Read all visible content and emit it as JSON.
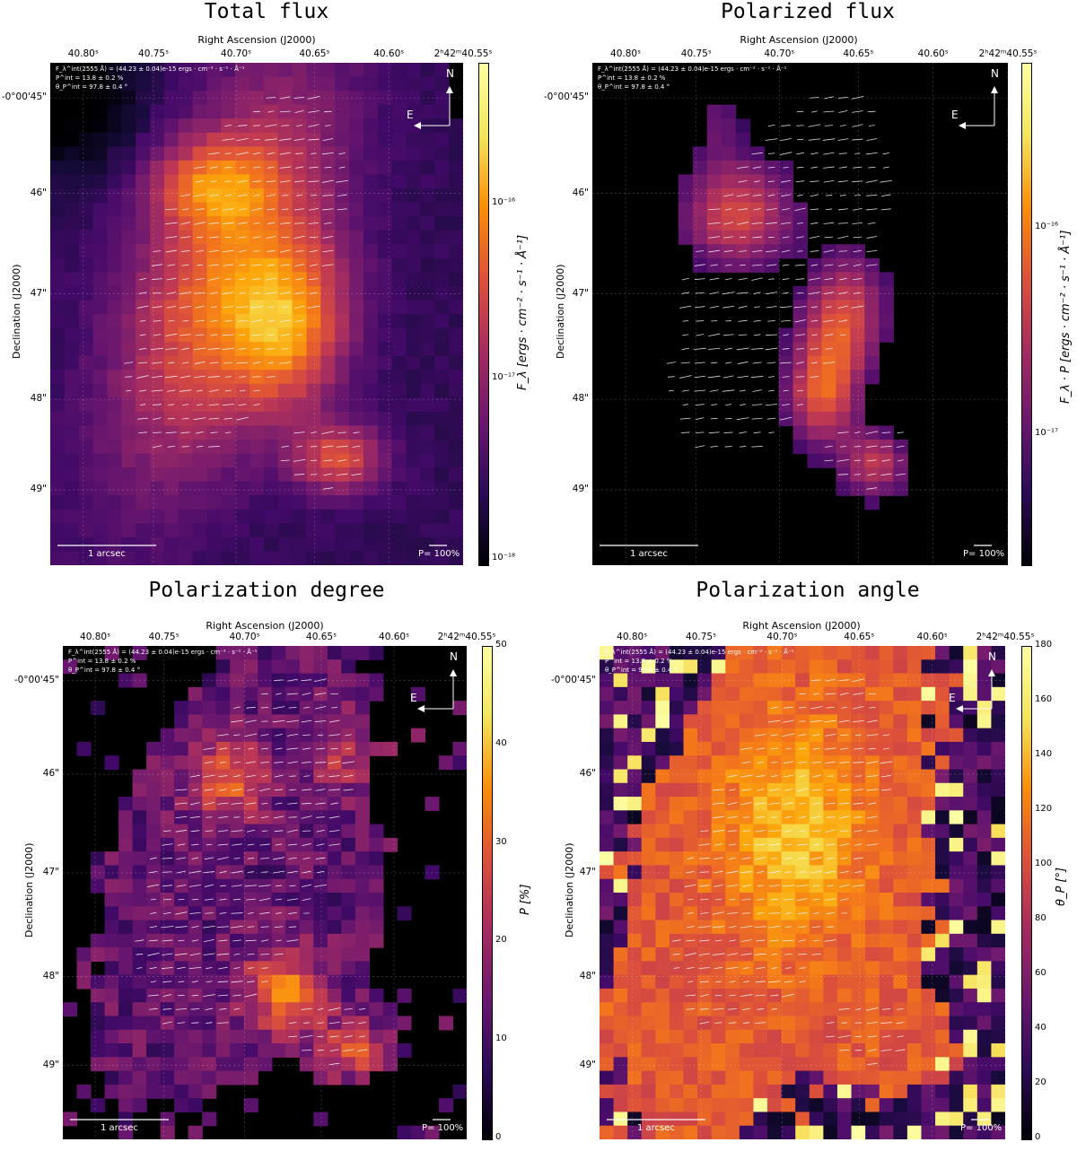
{
  "chart_data": [
    {
      "type": "heatmap",
      "title": "Total flux",
      "xlabel": "Right Ascension (J2000)",
      "ylabel": "Declination (J2000)",
      "x_ticks": [
        "40.80ˢ",
        "40.75ˢ",
        "40.70ˢ",
        "40.65ˢ",
        "40.60ˢ",
        "2ʰ42ᵐ40.55ˢ"
      ],
      "y_ticks": [
        "-0°00'45\"",
        "46\"",
        "47\"",
        "48\"",
        "49\""
      ],
      "colorbar_label": "F_λ [ergs · cm⁻² · s⁻¹ · Å⁻¹]",
      "colorbar_scale": "log",
      "colorbar_ticks": [
        "10⁻¹⁶",
        "10⁻¹⁷",
        "10⁻¹⁸"
      ],
      "colormap": "inferno",
      "grid": true
    },
    {
      "type": "heatmap",
      "title": "Polarized flux",
      "xlabel": "Right Ascension (J2000)",
      "ylabel": "Declination (J2000)",
      "x_ticks": [
        "40.80ˢ",
        "40.75ˢ",
        "40.70ˢ",
        "40.65ˢ",
        "40.60ˢ",
        "2ʰ42ᵐ40.55ˢ"
      ],
      "y_ticks": [
        "-0°00'45\"",
        "46\"",
        "47\"",
        "48\"",
        "49\""
      ],
      "colorbar_label": "F_λ · P [ergs · cm⁻² · s⁻¹ · Å⁻¹]",
      "colorbar_scale": "log",
      "colorbar_ticks": [
        "10⁻¹⁶",
        "10⁻¹⁷"
      ],
      "colormap": "inferno",
      "grid": true
    },
    {
      "type": "heatmap",
      "title": "Polarization degree",
      "xlabel": "Right Ascension (J2000)",
      "ylabel": "Declination (J2000)",
      "x_ticks": [
        "40.80ˢ",
        "40.75ˢ",
        "40.70ˢ",
        "40.65ˢ",
        "40.60ˢ",
        "2ʰ42ᵐ40.55ˢ"
      ],
      "y_ticks": [
        "-0°00'45\"",
        "46\"",
        "47\"",
        "48\"",
        "49\""
      ],
      "colorbar_label": "P [%]",
      "colorbar_range": [
        0,
        50
      ],
      "colorbar_ticks": [
        "50",
        "40",
        "30",
        "20",
        "10",
        "0"
      ],
      "colormap": "inferno",
      "grid": true
    },
    {
      "type": "heatmap",
      "title": "Polarization angle",
      "xlabel": "Right Ascension (J2000)",
      "ylabel": "Declination (J2000)",
      "x_ticks": [
        "40.80ˢ",
        "40.75ˢ",
        "40.70ˢ",
        "40.65ˢ",
        "40.60ˢ",
        "2ʰ42ᵐ40.55ˢ"
      ],
      "y_ticks": [
        "-0°00'45\"",
        "46\"",
        "47\"",
        "48\"",
        "49\""
      ],
      "colorbar_label": "θ_P [°]",
      "colorbar_range": [
        0,
        180
      ],
      "colorbar_ticks": [
        "180",
        "160",
        "140",
        "120",
        "100",
        "80",
        "60",
        "40",
        "20",
        "0"
      ],
      "colormap": "inferno",
      "grid": true
    }
  ],
  "annotations": {
    "integrated_flux": "F_λ^int(2555 Å) = (44.23 ± 0.04)e-15 ergs · cm⁻² · s⁻¹ · Å⁻¹",
    "integrated_pol_degree": "P^int = 13.8 ± 0.2 %",
    "integrated_pol_angle": "θ_P^int = 97.8 ± 0.4 °",
    "compass_north": "N",
    "compass_east": "E",
    "scalebar_text": "1 arcsec",
    "pol_scale_text": "P= 100%"
  },
  "panels": [
    {
      "title": "Total flux",
      "xlabel": "Right Ascension (J2000)",
      "ylabel": "Declination (J2000)",
      "cbar_label": "F_λ [ergs · cm⁻² · s⁻¹ · Å⁻¹]"
    },
    {
      "title": "Polarized flux",
      "xlabel": "Right Ascension (J2000)",
      "ylabel": "Declination (J2000)",
      "cbar_label": "F_λ · P [ergs · cm⁻² · s⁻¹ · Å⁻¹]"
    },
    {
      "title": "Polarization degree",
      "xlabel": "Right Ascension (J2000)",
      "ylabel": "Declination (J2000)",
      "cbar_label": "P [%]"
    },
    {
      "title": "Polarization angle",
      "xlabel": "Right Ascension (J2000)",
      "ylabel": "Declination (J2000)",
      "cbar_label": "θ_P [°]"
    }
  ],
  "x_ticks": [
    "40.80ˢ",
    "40.75ˢ",
    "40.70ˢ",
    "40.65ˢ",
    "40.60ˢ",
    "2ʰ42ᵐ40.55ˢ"
  ],
  "y_ticks": [
    "-0°00'45\"",
    "46\"",
    "47\"",
    "48\"",
    "49\""
  ],
  "cbar_ticks": {
    "flux": [
      "10⁻¹⁶",
      "10⁻¹⁷",
      "10⁻¹⁸"
    ],
    "pflux": [
      "10⁻¹⁶",
      "10⁻¹⁷"
    ],
    "pdeg": [
      "50",
      "40",
      "30",
      "20",
      "10",
      "0"
    ],
    "pang": [
      "180",
      "160",
      "140",
      "120",
      "100",
      "80",
      "60",
      "40",
      "20",
      "0"
    ]
  }
}
